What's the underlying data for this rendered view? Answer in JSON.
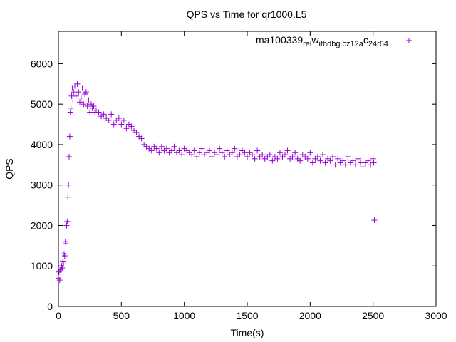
{
  "chart_data": {
    "type": "scatter",
    "title": "QPS vs Time for qr1000.L5",
    "xlabel": "Time(s)",
    "ylabel": "QPS",
    "xlim": [
      0,
      3000
    ],
    "ylim": [
      0,
      6800
    ],
    "x_ticks": [
      "0",
      "500",
      "1000",
      "1500",
      "2000",
      "2500",
      "3000"
    ],
    "y_ticks": [
      "0",
      "1000",
      "2000",
      "3000",
      "4000",
      "5000",
      "6000"
    ],
    "legend_placement": "top-right",
    "grid": false,
    "series": [
      {
        "name_parts": [
          "ma100339",
          "rel",
          "w",
          "ithdbg.cz12a",
          "c",
          "24r64"
        ],
        "color": "#9400d3",
        "marker": "+",
        "points": [
          [
            0,
            700
          ],
          [
            5,
            850
          ],
          [
            10,
            650
          ],
          [
            15,
            900
          ],
          [
            20,
            800
          ],
          [
            25,
            1000
          ],
          [
            30,
            950
          ],
          [
            35,
            1100
          ],
          [
            40,
            1050
          ],
          [
            45,
            1300
          ],
          [
            50,
            1250
          ],
          [
            55,
            1600
          ],
          [
            60,
            1550
          ],
          [
            65,
            2000
          ],
          [
            70,
            2100
          ],
          [
            75,
            2700
          ],
          [
            80,
            3000
          ],
          [
            85,
            3700
          ],
          [
            90,
            4200
          ],
          [
            95,
            4800
          ],
          [
            100,
            4900
          ],
          [
            105,
            5200
          ],
          [
            110,
            5400
          ],
          [
            115,
            5100
          ],
          [
            120,
            5300
          ],
          [
            130,
            5450
          ],
          [
            140,
            5200
          ],
          [
            150,
            5500
          ],
          [
            160,
            5300
          ],
          [
            170,
            5050
          ],
          [
            180,
            5150
          ],
          [
            190,
            5400
          ],
          [
            200,
            5000
          ],
          [
            210,
            5250
          ],
          [
            220,
            5300
          ],
          [
            230,
            4950
          ],
          [
            240,
            5100
          ],
          [
            250,
            4800
          ],
          [
            260,
            5000
          ],
          [
            270,
            4900
          ],
          [
            280,
            4950
          ],
          [
            290,
            4800
          ],
          [
            300,
            4850
          ],
          [
            320,
            4800
          ],
          [
            340,
            4700
          ],
          [
            360,
            4750
          ],
          [
            380,
            4650
          ],
          [
            400,
            4600
          ],
          [
            420,
            4750
          ],
          [
            440,
            4500
          ],
          [
            460,
            4600
          ],
          [
            480,
            4650
          ],
          [
            500,
            4500
          ],
          [
            520,
            4600
          ],
          [
            540,
            4400
          ],
          [
            560,
            4500
          ],
          [
            580,
            4450
          ],
          [
            600,
            4350
          ],
          [
            620,
            4300
          ],
          [
            640,
            4200
          ],
          [
            660,
            4150
          ],
          [
            680,
            4000
          ],
          [
            700,
            3950
          ],
          [
            720,
            3900
          ],
          [
            740,
            3850
          ],
          [
            760,
            3950
          ],
          [
            780,
            3900
          ],
          [
            800,
            3800
          ],
          [
            820,
            3950
          ],
          [
            840,
            3850
          ],
          [
            860,
            3900
          ],
          [
            880,
            3800
          ],
          [
            900,
            3850
          ],
          [
            920,
            3950
          ],
          [
            940,
            3800
          ],
          [
            960,
            3850
          ],
          [
            980,
            3750
          ],
          [
            1000,
            3900
          ],
          [
            1020,
            3850
          ],
          [
            1040,
            3800
          ],
          [
            1060,
            3750
          ],
          [
            1080,
            3850
          ],
          [
            1100,
            3700
          ],
          [
            1120,
            3800
          ],
          [
            1140,
            3900
          ],
          [
            1160,
            3750
          ],
          [
            1180,
            3800
          ],
          [
            1200,
            3850
          ],
          [
            1220,
            3700
          ],
          [
            1240,
            3800
          ],
          [
            1260,
            3750
          ],
          [
            1280,
            3900
          ],
          [
            1300,
            3800
          ],
          [
            1320,
            3700
          ],
          [
            1340,
            3850
          ],
          [
            1360,
            3750
          ],
          [
            1380,
            3800
          ],
          [
            1400,
            3900
          ],
          [
            1420,
            3700
          ],
          [
            1440,
            3750
          ],
          [
            1460,
            3850
          ],
          [
            1480,
            3800
          ],
          [
            1500,
            3700
          ],
          [
            1520,
            3800
          ],
          [
            1540,
            3750
          ],
          [
            1560,
            3650
          ],
          [
            1580,
            3850
          ],
          [
            1600,
            3700
          ],
          [
            1620,
            3750
          ],
          [
            1640,
            3650
          ],
          [
            1660,
            3700
          ],
          [
            1680,
            3750
          ],
          [
            1700,
            3600
          ],
          [
            1720,
            3700
          ],
          [
            1740,
            3650
          ],
          [
            1760,
            3800
          ],
          [
            1780,
            3700
          ],
          [
            1800,
            3750
          ],
          [
            1820,
            3850
          ],
          [
            1840,
            3650
          ],
          [
            1860,
            3700
          ],
          [
            1880,
            3800
          ],
          [
            1900,
            3650
          ],
          [
            1920,
            3600
          ],
          [
            1940,
            3750
          ],
          [
            1960,
            3700
          ],
          [
            1980,
            3650
          ],
          [
            2000,
            3800
          ],
          [
            2020,
            3550
          ],
          [
            2040,
            3650
          ],
          [
            2060,
            3700
          ],
          [
            2080,
            3600
          ],
          [
            2100,
            3750
          ],
          [
            2120,
            3550
          ],
          [
            2140,
            3650
          ],
          [
            2160,
            3600
          ],
          [
            2180,
            3700
          ],
          [
            2200,
            3500
          ],
          [
            2220,
            3650
          ],
          [
            2240,
            3550
          ],
          [
            2260,
            3600
          ],
          [
            2280,
            3500
          ],
          [
            2300,
            3700
          ],
          [
            2320,
            3550
          ],
          [
            2340,
            3600
          ],
          [
            2360,
            3500
          ],
          [
            2380,
            3650
          ],
          [
            2400,
            3550
          ],
          [
            2420,
            3450
          ],
          [
            2440,
            3550
          ],
          [
            2460,
            3600
          ],
          [
            2480,
            3500
          ],
          [
            2500,
            3650
          ],
          [
            2505,
            3550
          ],
          [
            2510,
            2130
          ]
        ]
      }
    ]
  }
}
